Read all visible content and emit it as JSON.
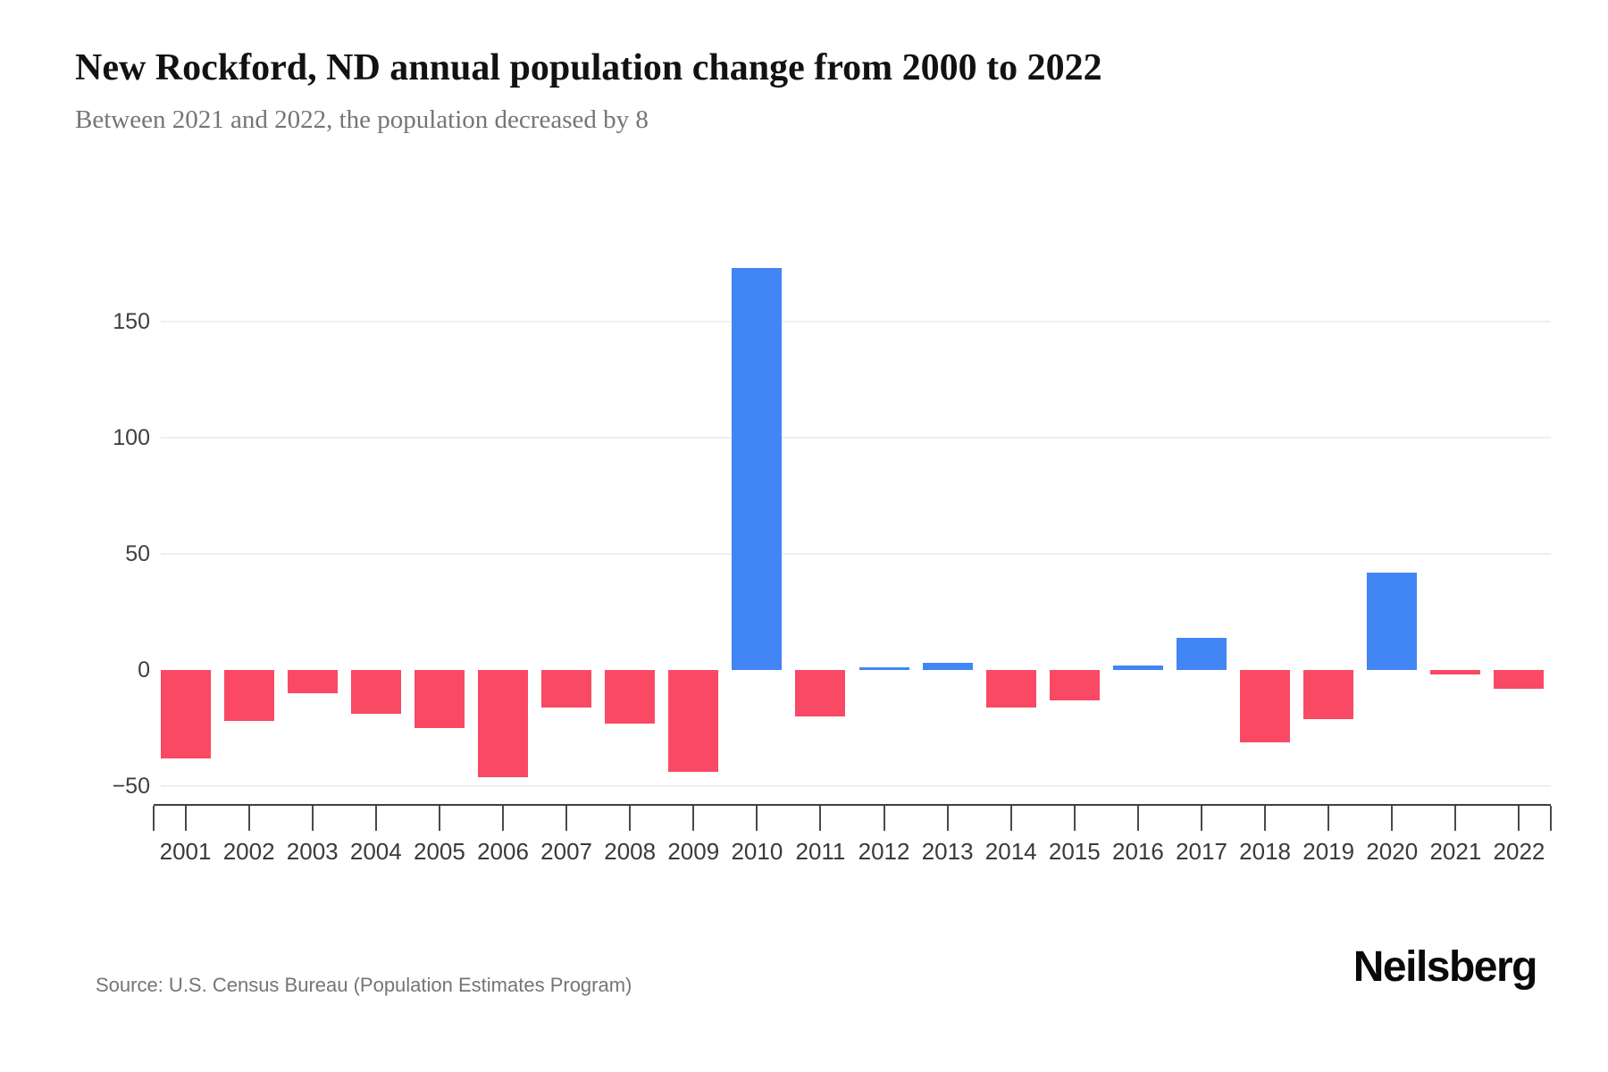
{
  "header": {
    "title": "New Rockford, ND annual population change from 2000 to 2022",
    "subtitle": "Between 2021 and 2022, the population decreased by 8"
  },
  "footer": {
    "source": "Source: U.S. Census Bureau (Population Estimates Program)",
    "brand": "Neilsberg"
  },
  "chart_data": {
    "type": "bar",
    "title": "New Rockford, ND annual population change from 2000 to 2022",
    "subtitle": "Between 2021 and 2022, the population decreased by 8",
    "categories": [
      "2001",
      "2002",
      "2003",
      "2004",
      "2005",
      "2006",
      "2007",
      "2008",
      "2009",
      "2010",
      "2011",
      "2012",
      "2013",
      "2014",
      "2015",
      "2016",
      "2017",
      "2018",
      "2019",
      "2020",
      "2021",
      "2022"
    ],
    "values": [
      -38,
      -22,
      -10,
      -19,
      -25,
      -46,
      -16,
      -23,
      -44,
      173,
      -20,
      1,
      3,
      -16,
      -13,
      2,
      14,
      -31,
      -21,
      42,
      -2,
      -8
    ],
    "xlabel": "",
    "ylabel": "",
    "ylim": [
      -60,
      185
    ],
    "yticks": [
      150,
      100,
      50,
      0,
      -50
    ],
    "gridlines": [
      150,
      100,
      50,
      -50
    ],
    "grid": true,
    "legend": false,
    "positive_color": "#4285F4",
    "negative_color": "#F94964"
  }
}
